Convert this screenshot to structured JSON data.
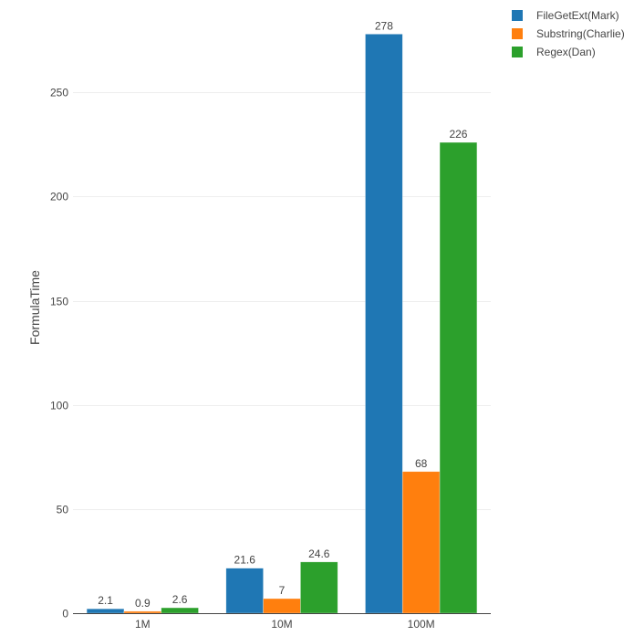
{
  "chart_data": {
    "type": "bar",
    "title": "",
    "xlabel": "",
    "ylabel": "FormulaTime",
    "categories": [
      "1M",
      "10M",
      "100M"
    ],
    "series": [
      {
        "name": "FileGetExt(Mark)",
        "color": "#1f77b4",
        "values": [
          2.1,
          21.6,
          278
        ],
        "labels": [
          "2.1",
          "21.6",
          "278"
        ]
      },
      {
        "name": "Substring(Charlie)",
        "color": "#ff7f0e",
        "values": [
          0.9,
          7,
          68
        ],
        "labels": [
          "0.9",
          "7",
          "68"
        ]
      },
      {
        "name": "Regex(Dan)",
        "color": "#2ca02c",
        "values": [
          2.6,
          24.6,
          226
        ],
        "labels": [
          "2.6",
          "24.6",
          "226"
        ]
      }
    ],
    "yticks": [
      0,
      50,
      100,
      150,
      200,
      250
    ],
    "ylim": [
      0,
      292.6
    ],
    "grid": true,
    "legend_position": "top-right"
  }
}
